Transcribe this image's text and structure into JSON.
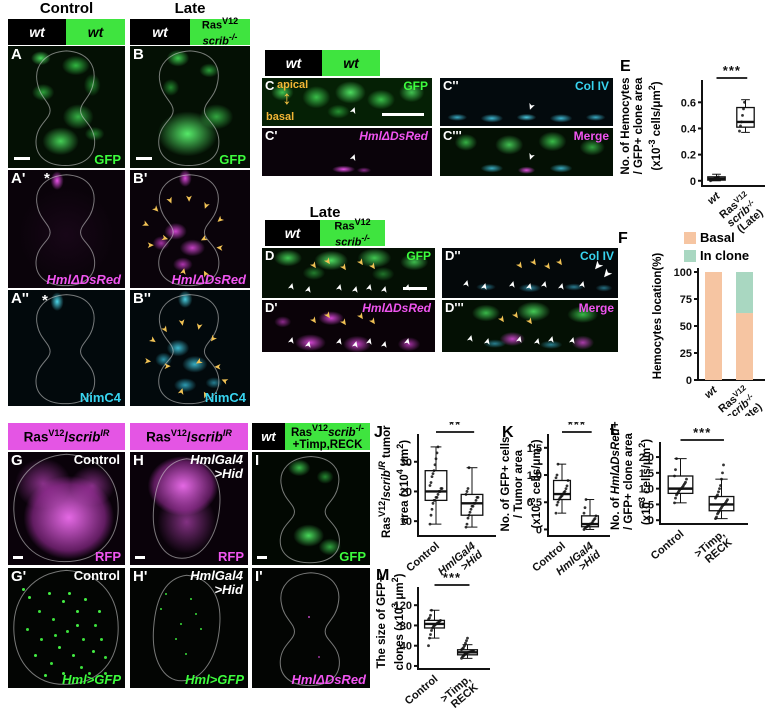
{
  "figure": {
    "headers": {
      "control": "Control",
      "late": "Late",
      "late_mid": "Late"
    }
  },
  "frag": {
    "wt": "wt",
    "ras": "Ras",
    "v12": "V12",
    "scrib": "scrib",
    "ko": "-/-",
    "slash": "/",
    "ir": "IR",
    "timp": "+Timp,RECK"
  },
  "annots": {
    "control": "Control",
    "hmlgal4": "HmlGal4",
    "hid": ">Hid",
    "apical": "apical",
    "basal": "basal",
    "asterisk": "*"
  },
  "panels": {
    "A": {
      "letter": "A",
      "channel": "GFP"
    },
    "B": {
      "letter": "B",
      "channel": "GFP"
    },
    "Ap": {
      "letter": "A'",
      "channel": "HmlΔDsRed"
    },
    "Bp": {
      "letter": "B'",
      "channel": "HmlΔDsRed"
    },
    "App": {
      "letter": "A''",
      "channel": "NimC4"
    },
    "Bpp": {
      "letter": "B''",
      "channel": "NimC4"
    },
    "C": {
      "letter": "C",
      "channel": "GFP"
    },
    "Cp": {
      "letter": "C'",
      "channel": "HmlΔDsRed"
    },
    "Cpp": {
      "letter": "C''",
      "channel": "Col IV"
    },
    "Cppp": {
      "letter": "C'''",
      "channel": "Merge"
    },
    "D": {
      "letter": "D",
      "channel": "GFP"
    },
    "Dp": {
      "letter": "D'",
      "channel": "HmlΔDsRed"
    },
    "Dpp": {
      "letter": "D''",
      "channel": "Col IV"
    },
    "Dppp": {
      "letter": "D'''",
      "channel": "Merge"
    },
    "G": {
      "letter": "G",
      "channel": "RFP"
    },
    "H": {
      "letter": "H",
      "channel": "RFP"
    },
    "I": {
      "letter": "I",
      "channel": "GFP"
    },
    "Gp": {
      "letter": "G'",
      "channel": "Hml>GFP"
    },
    "Hp": {
      "letter": "H'",
      "channel": "Hml>GFP"
    },
    "Ip": {
      "letter": "I'",
      "channel": "HmlΔDsRed"
    }
  },
  "chart_data": [
    {
      "id": "E",
      "type": "box",
      "letter": "E",
      "ylabel": [
        [
          [
            "No. of Hemocytes"
          ]
        ],
        [
          [
            "/ GFP+ clone area"
          ]
        ],
        [
          [
            "(x10"
          ],
          [
            "-3",
            "s"
          ],
          [
            " cells/μm"
          ],
          [
            "2",
            "s"
          ],
          [
            ")"
          ]
        ]
      ],
      "ylim": [
        -0.04,
        0.74
      ],
      "yticks": [
        0,
        0.2,
        0.4,
        0.6
      ],
      "ytick_labels": [
        "0",
        "0.2",
        "0.4",
        "0.6"
      ],
      "sig": "***",
      "boxes": [
        {
          "label": [
            [
              [
                "wt",
                "i"
              ]
            ]
          ],
          "lo": 0,
          "q1": 0.005,
          "med": 0.015,
          "q3": 0.03,
          "hi": 0.05,
          "points": [
            0,
            0.005,
            0.01,
            0.01,
            0.015,
            0.02,
            0.02,
            0.025,
            0.03
          ]
        },
        {
          "label": [
            [
              [
                "Ras"
              ],
              [
                "V12",
                "s"
              ]
            ],
            [
              [
                "scrib",
                "i"
              ],
              [
                "-/-",
                "si"
              ]
            ],
            [
              [
                "(Late)"
              ]
            ]
          ],
          "lo": 0.37,
          "q1": 0.41,
          "med": 0.45,
          "q3": 0.56,
          "hi": 0.62,
          "points": [
            0.38,
            0.42,
            0.45,
            0.5,
            0.55,
            0.6
          ]
        }
      ]
    },
    {
      "id": "F",
      "type": "stack",
      "letter": "F",
      "ylabel": [
        [
          [
            "Hemocytes location(%)"
          ]
        ]
      ],
      "ylim": [
        0,
        100
      ],
      "yticks": [
        0,
        25,
        50,
        75,
        100
      ],
      "ytick_labels": [
        "0",
        "25",
        "50",
        "75",
        "100"
      ],
      "legend": [
        {
          "label": "Basal",
          "color": "#f6c5a2"
        },
        {
          "label": "In clone",
          "color": "#a9d7c1"
        }
      ],
      "cats": [
        {
          "label": [
            [
              [
                "wt",
                "i"
              ]
            ]
          ]
        },
        {
          "label": [
            [
              [
                "Ras"
              ],
              [
                "V12",
                "s"
              ]
            ],
            [
              [
                "scrib",
                "i"
              ],
              [
                "-/-",
                "si"
              ]
            ],
            [
              [
                "(Late)"
              ]
            ]
          ]
        }
      ],
      "values": [
        [
          100,
          0
        ],
        [
          62,
          38
        ]
      ]
    },
    {
      "id": "J",
      "type": "box",
      "letter": "J",
      "ylabel": [
        [
          [
            "Ras"
          ],
          [
            "V12",
            "s"
          ],
          [
            "/"
          ],
          [
            "scrib",
            "i"
          ],
          [
            "IR",
            "si"
          ],
          [
            " tumor"
          ]
        ],
        [
          [
            "area (x10"
          ],
          [
            "4",
            "s"
          ],
          [
            " μm"
          ],
          [
            "2",
            "s"
          ],
          [
            ")"
          ]
        ]
      ],
      "ylim": [
        5,
        38
      ],
      "yticks": [
        10,
        20,
        30
      ],
      "ytick_labels": [
        "10",
        "20",
        "30"
      ],
      "sig": "**",
      "boxes": [
        {
          "label": [
            [
              [
                "Control"
              ]
            ]
          ],
          "lo": 9,
          "q1": 17,
          "med": 20,
          "q3": 27,
          "hi": 35,
          "points": [
            9,
            12,
            14,
            16,
            17,
            17,
            18,
            18,
            19,
            20,
            20,
            21,
            21,
            22,
            23,
            25,
            26,
            27,
            29,
            31,
            33,
            35
          ]
        },
        {
          "label": [
            [
              [
                "HmlGal4",
                "i"
              ]
            ],
            [
              [
                ">Hid",
                "i"
              ]
            ]
          ],
          "lo": 8,
          "q1": 12,
          "med": 16,
          "q3": 19,
          "hi": 28,
          "points": [
            8,
            9,
            11,
            12,
            13,
            14,
            15,
            15,
            16,
            16,
            17,
            18,
            18,
            19,
            20,
            21,
            28
          ]
        }
      ]
    },
    {
      "id": "K",
      "type": "box",
      "letter": "K",
      "ylabel": [
        [
          [
            "No. of GFP+ cells"
          ]
        ],
        [
          [
            "/ Tumor area"
          ]
        ],
        [
          [
            "(x10"
          ],
          [
            "-3",
            "s"
          ],
          [
            " cells/μm"
          ],
          [
            "2",
            "s"
          ],
          [
            ")"
          ]
        ]
      ],
      "ylim": [
        -0.12,
        1.68
      ],
      "yticks": [
        0,
        0.5,
        1.0,
        1.5
      ],
      "ytick_labels": [
        "0",
        "0.5",
        "1.0",
        "1.5"
      ],
      "sig": "***",
      "boxes": [
        {
          "label": [
            [
              [
                "Control"
              ]
            ]
          ],
          "lo": 0.3,
          "q1": 0.55,
          "med": 0.65,
          "q3": 0.9,
          "hi": 1.2,
          "points": [
            0.3,
            0.45,
            0.5,
            0.55,
            0.58,
            0.6,
            0.62,
            0.65,
            0.68,
            0.7,
            0.75,
            0.8,
            0.9,
            0.95,
            1.0,
            1.2
          ]
        },
        {
          "label": [
            [
              [
                "HmlGal4",
                "i"
              ]
            ],
            [
              [
                ">Hid",
                "i"
              ]
            ]
          ],
          "lo": 0,
          "q1": 0.05,
          "med": 0.1,
          "q3": 0.25,
          "hi": 0.55,
          "points": [
            0,
            0.02,
            0.04,
            0.05,
            0.07,
            0.08,
            0.1,
            0.1,
            0.12,
            0.15,
            0.18,
            0.2,
            0.25,
            0.3,
            0.4,
            0.55
          ]
        }
      ]
    },
    {
      "id": "L",
      "type": "box",
      "letter": "L",
      "ylabel": [
        [
          [
            "No. of "
          ],
          [
            "HmlΔDsRed+",
            "i"
          ]
        ],
        [
          [
            "/ GFP+ clone area"
          ]
        ],
        [
          [
            "(x10"
          ],
          [
            "3",
            "s"
          ],
          [
            " cells/μm"
          ],
          [
            "2",
            "s"
          ],
          [
            ")"
          ]
        ]
      ],
      "ylim": [
        -0.12,
        2.35
      ],
      "yticks": [
        0,
        0.5,
        1.0,
        1.5,
        2.0
      ],
      "ytick_labels": [
        "0",
        "0.5",
        "1.0",
        "1.5",
        "2.0"
      ],
      "sig": "***",
      "boxes": [
        {
          "label": [
            [
              [
                "Control"
              ]
            ]
          ],
          "lo": 0.55,
          "q1": 0.85,
          "med": 1.0,
          "q3": 1.4,
          "hi": 1.95,
          "points": [
            0.55,
            0.7,
            0.8,
            0.85,
            0.9,
            0.95,
            1.0,
            1.0,
            1.05,
            1.1,
            1.15,
            1.2,
            1.3,
            1.4,
            1.6,
            1.95
          ]
        },
        {
          "label": [
            [
              [
                ">Timp,"
              ]
            ],
            [
              [
                "RECK"
              ]
            ]
          ],
          "lo": 0.05,
          "q1": 0.3,
          "med": 0.5,
          "q3": 0.75,
          "hi": 1.3,
          "points": [
            0.05,
            0.1,
            0.2,
            0.25,
            0.3,
            0.35,
            0.4,
            0.45,
            0.5,
            0.5,
            0.55,
            0.6,
            0.65,
            0.7,
            0.75,
            0.8,
            0.9,
            1.0,
            1.1,
            1.3,
            1.5,
            1.75
          ]
        }
      ]
    },
    {
      "id": "M",
      "type": "box",
      "letter": "M",
      "ylabel": [
        [
          [
            "The size of GFP+"
          ]
        ],
        [
          [
            "clones (x10"
          ],
          [
            "3",
            "s"
          ],
          [
            " μm"
          ],
          [
            "2",
            "s"
          ],
          [
            ")"
          ]
        ]
      ],
      "ylim": [
        -6,
        148
      ],
      "yticks": [
        0,
        40,
        80,
        120
      ],
      "ytick_labels": [
        "0",
        "40",
        "80",
        "120"
      ],
      "sig": "***",
      "boxes": [
        {
          "label": [
            [
              [
                "Control"
              ]
            ]
          ],
          "lo": 55,
          "q1": 75,
          "med": 83,
          "q3": 90,
          "hi": 110,
          "points": [
            40,
            55,
            62,
            70,
            75,
            78,
            80,
            82,
            83,
            85,
            86,
            88,
            90,
            92,
            95,
            100,
            110
          ]
        },
        {
          "label": [
            [
              [
                ">Timp,"
              ]
            ],
            [
              [
                "RECK"
              ]
            ]
          ],
          "lo": 15,
          "q1": 22,
          "med": 27,
          "q3": 32,
          "hi": 42,
          "points": [
            15,
            18,
            20,
            22,
            24,
            25,
            26,
            27,
            27,
            28,
            28,
            30,
            30,
            32,
            34,
            36,
            40,
            45,
            50,
            55
          ]
        }
      ]
    }
  ]
}
